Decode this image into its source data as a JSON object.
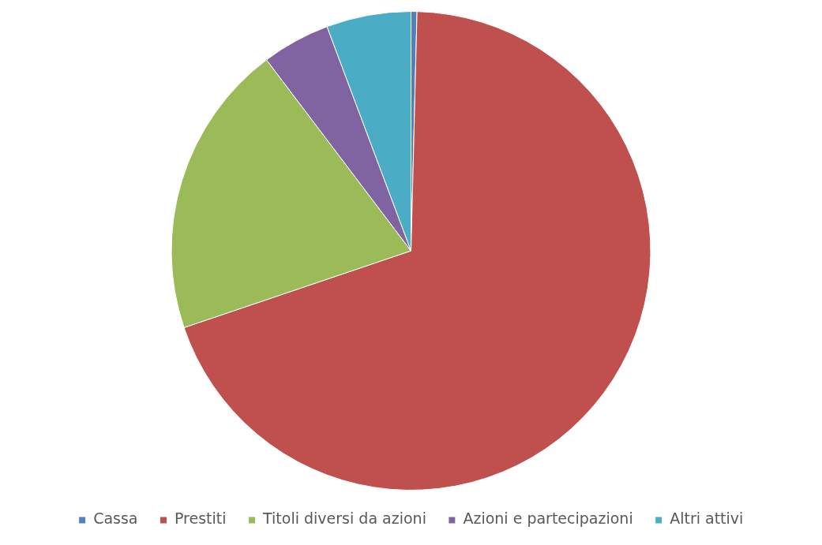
{
  "chart_data": {
    "type": "pie",
    "categories": [
      "Cassa",
      "Prestiti",
      "Titoli diversi da azioni",
      "Azioni e partecipazioni",
      "Altri attivi"
    ],
    "values": [
      0.4,
      69.4,
      19.9,
      4.6,
      5.7
    ],
    "colors": [
      "#4f81bd",
      "#c0504d",
      "#9bbb59",
      "#8064a2",
      "#4bacc6"
    ],
    "legend": "bottom"
  }
}
